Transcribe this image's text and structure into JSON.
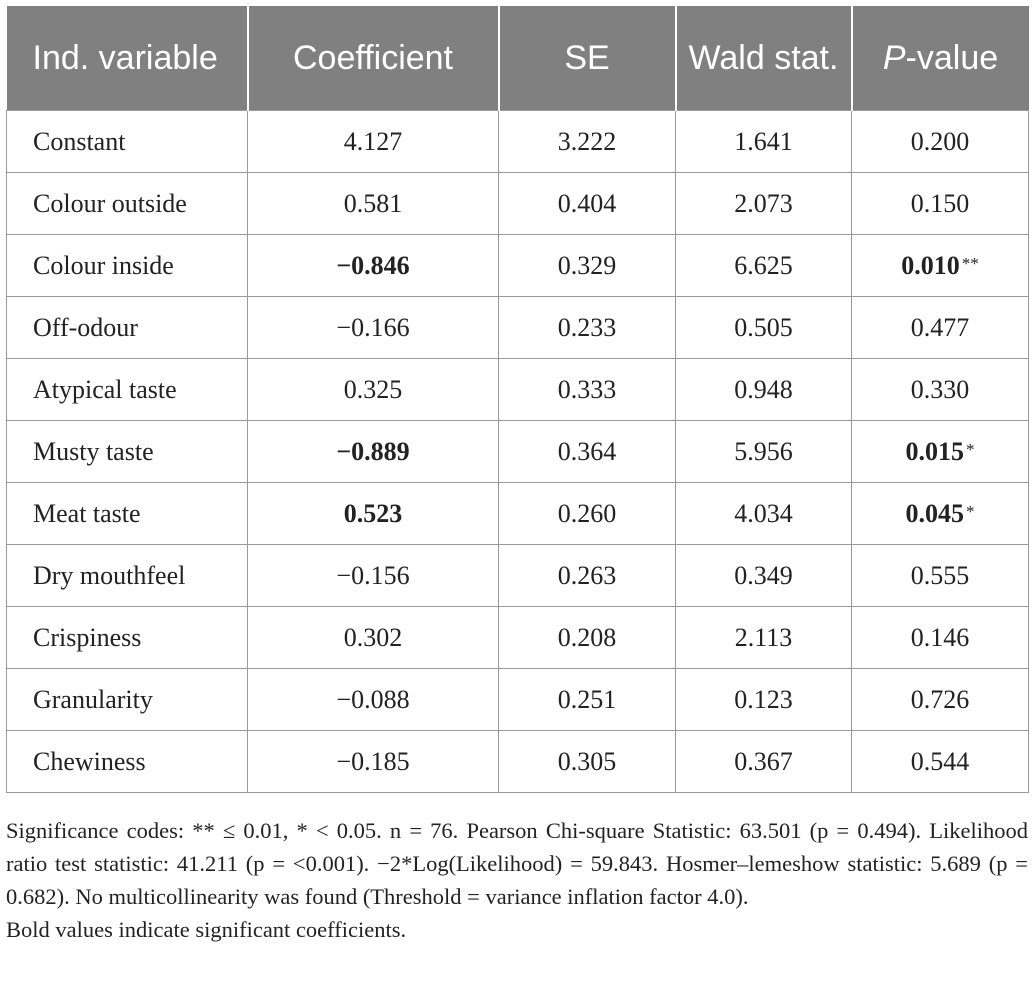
{
  "table": {
    "header": [
      "Ind. variable",
      "Coefficient",
      "SE",
      "Wald stat.",
      [
        "P",
        "-value"
      ]
    ],
    "rows": [
      {
        "cells": [
          "Constant",
          "4.127",
          "3.222",
          "1.641",
          "0.200"
        ]
      },
      {
        "cells": [
          "Colour outside",
          "0.581",
          "0.404",
          "2.073",
          "0.150"
        ]
      },
      {
        "cells": [
          "Colour inside",
          "−0.846",
          "0.329",
          "6.625",
          "0.010"
        ],
        "bold": [
          1,
          4
        ],
        "sig": "**"
      },
      {
        "cells": [
          "Off-odour",
          "−0.166",
          "0.233",
          "0.505",
          "0.477"
        ]
      },
      {
        "cells": [
          "Atypical taste",
          "0.325",
          "0.333",
          "0.948",
          "0.330"
        ]
      },
      {
        "cells": [
          "Musty taste",
          "−0.889",
          "0.364",
          "5.956",
          "0.015"
        ],
        "bold": [
          1,
          4
        ],
        "sig": "*"
      },
      {
        "cells": [
          "Meat taste",
          "0.523",
          "0.260",
          "4.034",
          "0.045"
        ],
        "bold": [
          1,
          4
        ],
        "sig": "*"
      },
      {
        "cells": [
          "Dry mouthfeel",
          "−0.156",
          "0.263",
          "0.349",
          "0.555"
        ]
      },
      {
        "cells": [
          "Crispiness",
          "0.302",
          "0.208",
          "2.113",
          "0.146"
        ]
      },
      {
        "cells": [
          "Granularity",
          "−0.088",
          "0.251",
          "0.123",
          "0.726"
        ]
      },
      {
        "cells": [
          "Chewiness",
          "−0.185",
          "0.305",
          "0.367",
          "0.544"
        ]
      }
    ]
  },
  "notes": [
    "Significance codes: ** ≤ 0.01, * < 0.05. n = 76. Pearson Chi-square Statistic: 63.501 (p = 0.494). Likelihood ratio test statistic: 41.211 (p = <0.001). −2*Log(Likelihood) = 59.843. Hosmer–lemeshow statistic: 5.689 (p = 0.682). No multicollinearity was found (Threshold = variance inflation factor 4.0).",
    "Bold values indicate significant coefficients."
  ]
}
